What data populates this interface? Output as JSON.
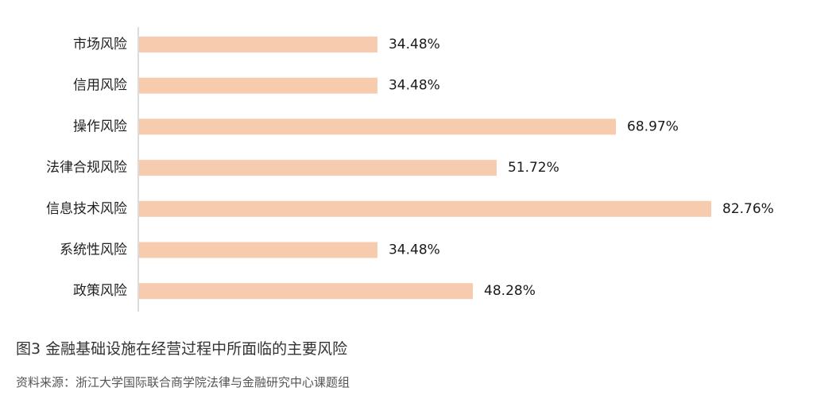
{
  "chart_data": {
    "type": "bar",
    "orientation": "horizontal",
    "categories": [
      "市场风险",
      "信用风险",
      "操作风险",
      "法律合规风险",
      "信息技术风险",
      "系统性风险",
      "政策风险"
    ],
    "values": [
      34.48,
      34.48,
      68.97,
      51.72,
      82.76,
      34.48,
      48.28
    ],
    "value_labels": [
      "34.48%",
      "34.48%",
      "68.97%",
      "51.72%",
      "82.76%",
      "34.48%",
      "48.28%"
    ],
    "xlim": [
      0,
      100
    ],
    "grid": false,
    "legend": "none",
    "bar_color": "#f7cbae",
    "axis_color": "#d0d0d0"
  },
  "caption": "图3  金融基础设施在经营过程中所面临的主要风险",
  "source": "资料来源：浙江大学国际联合商学院法律与金融研究中心课题组"
}
